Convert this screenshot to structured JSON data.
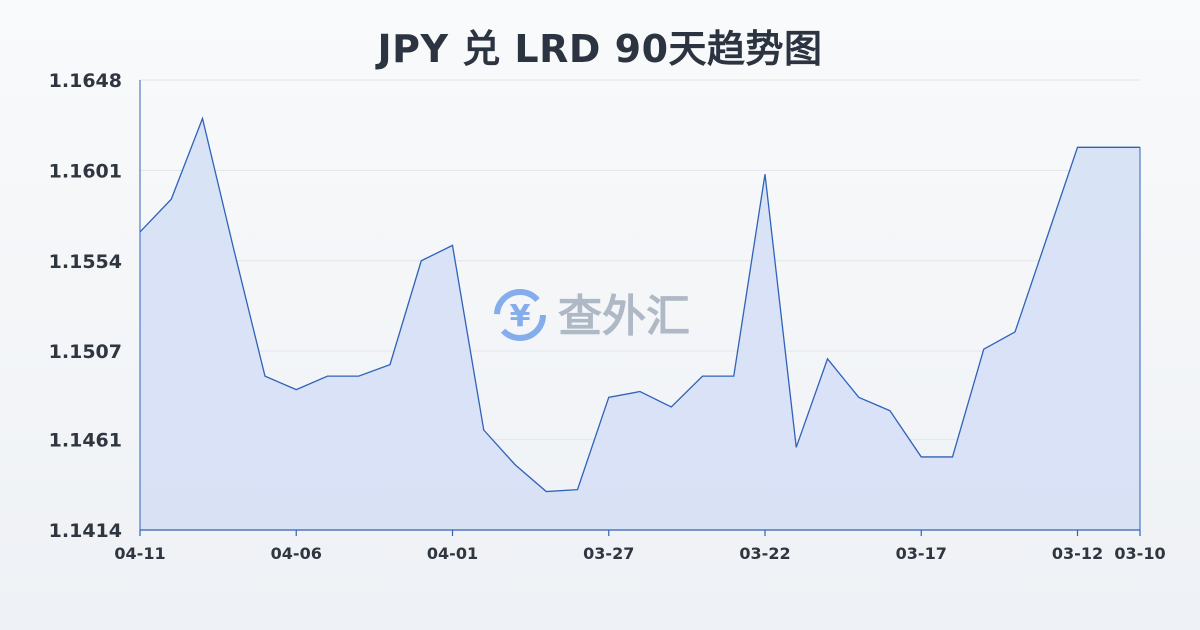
{
  "chart_data": {
    "type": "area",
    "title": "JPY 兑 LRD 90天趋势图",
    "xlabel": "",
    "ylabel": "",
    "ylim": [
      1.1414,
      1.1648
    ],
    "yticks": [
      "1.1648",
      "1.1601",
      "1.1554",
      "1.1507",
      "1.1461",
      "1.1414"
    ],
    "xticks": [
      {
        "label": "04-11",
        "index": 0
      },
      {
        "label": "04-06",
        "index": 5
      },
      {
        "label": "04-01",
        "index": 10
      },
      {
        "label": "03-27",
        "index": 15
      },
      {
        "label": "03-22",
        "index": 20
      },
      {
        "label": "03-17",
        "index": 25
      },
      {
        "label": "03-12",
        "index": 30
      },
      {
        "label": "03-10",
        "index": 32
      }
    ],
    "x": [
      "04-11",
      "04-10",
      "04-09",
      "04-08",
      "04-07",
      "04-06",
      "04-05",
      "04-04",
      "04-03",
      "04-02",
      "04-01",
      "03-31",
      "03-30",
      "03-29",
      "03-28",
      "03-27",
      "03-26",
      "03-25",
      "03-24",
      "03-23",
      "03-22",
      "03-21",
      "03-20",
      "03-19",
      "03-18",
      "03-17",
      "03-16",
      "03-15",
      "03-14",
      "03-13",
      "03-12",
      "03-11",
      "03-10"
    ],
    "series": [
      {
        "values": [
          1.1569,
          1.1586,
          1.1628,
          1.156,
          1.1494,
          1.1487,
          1.1494,
          1.1494,
          1.15,
          1.1554,
          1.1562,
          1.1466,
          1.1448,
          1.1434,
          1.1435,
          1.1483,
          1.1486,
          1.1478,
          1.1494,
          1.1494,
          1.1599,
          1.1457,
          1.1503,
          1.1483,
          1.1476,
          1.1452,
          1.1452,
          1.1508,
          1.1517,
          1.1565,
          1.1613,
          1.1613,
          1.1613
        ],
        "color": "#2f63b8",
        "fill": "#d6e0f5"
      }
    ],
    "grid": true,
    "legend": "none"
  },
  "watermark": {
    "text": "查外汇",
    "icon": "yen-exchange-icon",
    "color": "#6f9ee8"
  }
}
